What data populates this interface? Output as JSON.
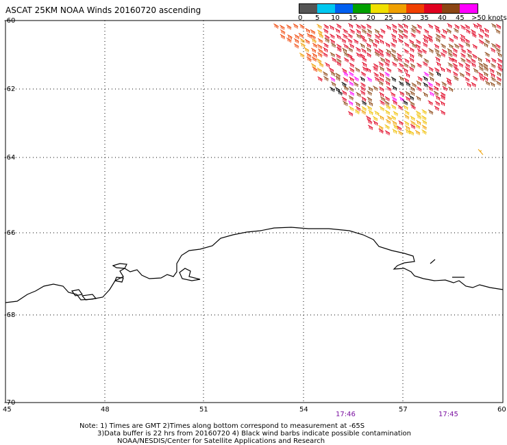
{
  "title": "ASCAT 25KM NOAA Winds 20160720 ascending",
  "scale": {
    "colors": [
      "#555555",
      "#00c8f0",
      "#0060f0",
      "#00a000",
      "#f0e000",
      "#f0a000",
      "#f04000",
      "#e00020",
      "#8b4513",
      "#ff00ff",
      "#6a0090"
    ],
    "labels": [
      "0",
      "5",
      "10",
      "15",
      "20",
      "25",
      "30",
      "35",
      "40",
      "45",
      ">50 knots"
    ]
  },
  "map": {
    "lat_labels": [
      "-60",
      "-62",
      "-64",
      "-66",
      "-68",
      "-70"
    ],
    "lon_labels": [
      "45",
      "48",
      "51",
      "54",
      "57",
      "60"
    ]
  },
  "times": [
    "17:46",
    "17:45"
  ],
  "notes": [
    "Note: 1) Times are GMT 2)Times along bottom correspond to measurement at -65S",
    "3)Data buffer is 22 hrs from 20160720 4) Black wind barbs indicate possible contamination",
    "NOAA/NESDIS/Center for Satellite Applications and Research"
  ]
}
